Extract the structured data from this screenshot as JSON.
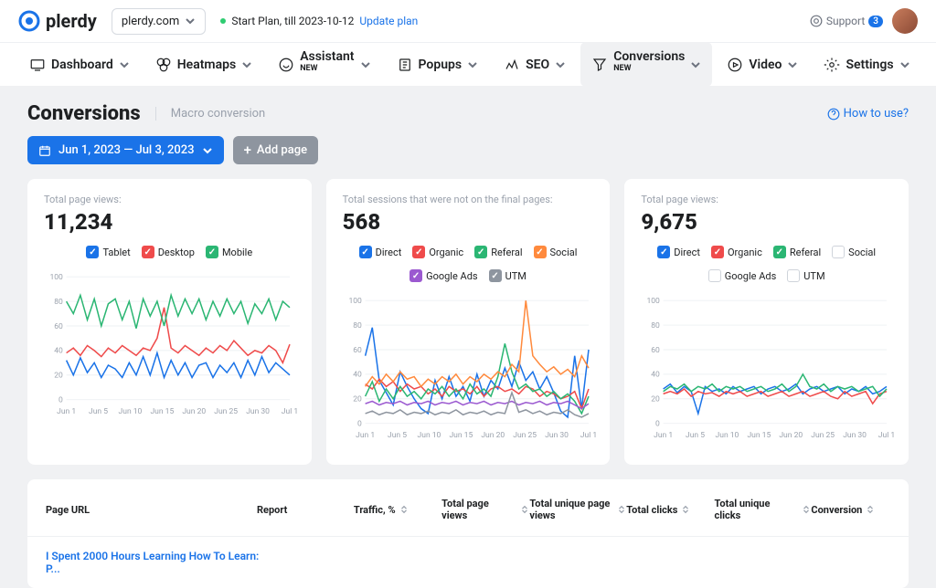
{
  "brand": "plerdy",
  "domain": "plerdy.com",
  "plan_text": "Start Plan, till 2023-10-12",
  "plan_link": "Update plan",
  "support_label": "Support",
  "support_count": "3",
  "nav": [
    {
      "label": "Dashboard",
      "chev": true
    },
    {
      "label": "Heatmaps",
      "chev": true
    },
    {
      "label": "Assistant",
      "new": true,
      "chev": true
    },
    {
      "label": "Popups",
      "chev": true
    },
    {
      "label": "SEO",
      "chev": true
    },
    {
      "label": "Conversions",
      "new": true,
      "chev": true,
      "active": true
    },
    {
      "label": "Video",
      "chev": true
    },
    {
      "label": "Settings",
      "chev": true
    }
  ],
  "page_title": "Conversions",
  "page_sub": "Macro conversion",
  "howto": "How to use?",
  "date_range": "Jun 1, 2023 — Jul 3, 2023",
  "add_page": "Add page",
  "x_labels": [
    "Jun 1",
    "Jun 5",
    "Jun 10",
    "Jun 15",
    "Jun 20",
    "Jun 25",
    "Jun 30",
    "Jul 1"
  ],
  "y_ticks": [
    0,
    20,
    40,
    60,
    80,
    100
  ],
  "charts": [
    {
      "label": "Total page views:",
      "value": "11,234",
      "legend": [
        {
          "name": "Tablet",
          "color": "#1a73e8",
          "on": true
        },
        {
          "name": "Desktop",
          "color": "#ef4b4b",
          "on": true
        },
        {
          "name": "Mobile",
          "color": "#2bb673",
          "on": true
        }
      ],
      "series": [
        {
          "color": "#1a73e8",
          "data": [
            32,
            20,
            34,
            22,
            30,
            18,
            28,
            25,
            18,
            30,
            20,
            35,
            20,
            38,
            18,
            32,
            20,
            30,
            18,
            28,
            30,
            18,
            28,
            22,
            30,
            18,
            32,
            20,
            35,
            22,
            30,
            25,
            20
          ]
        },
        {
          "color": "#ef4b4b",
          "data": [
            38,
            42,
            36,
            44,
            40,
            35,
            42,
            38,
            44,
            40,
            36,
            42,
            40,
            50,
            75,
            42,
            38,
            44,
            40,
            36,
            42,
            38,
            44,
            40,
            48,
            42,
            36,
            40,
            38,
            44,
            40,
            30,
            45
          ]
        },
        {
          "color": "#2bb673",
          "data": [
            80,
            70,
            85,
            65,
            82,
            60,
            78,
            82,
            65,
            80,
            58,
            82,
            68,
            80,
            60,
            85,
            68,
            82,
            70,
            82,
            65,
            80,
            68,
            82,
            70,
            80,
            62,
            78,
            70,
            82,
            65,
            80,
            75
          ]
        }
      ]
    },
    {
      "label": "Total sessions that were not on the final pages:",
      "value": "568",
      "legend": [
        {
          "name": "Direct",
          "color": "#1a73e8",
          "on": true
        },
        {
          "name": "Organic",
          "color": "#ef4b4b",
          "on": true
        },
        {
          "name": "Referal",
          "color": "#2bb673",
          "on": true
        },
        {
          "name": "Social",
          "color": "#ff8a3d",
          "on": true
        },
        {
          "name": "Google Ads",
          "color": "#9b59d0",
          "on": true
        },
        {
          "name": "UTM",
          "color": "#8e959f",
          "on": true
        }
      ],
      "series": [
        {
          "color": "#1a73e8",
          "data": [
            55,
            78,
            35,
            25,
            15,
            42,
            30,
            20,
            12,
            8,
            35,
            20,
            38,
            22,
            30,
            18,
            40,
            22,
            35,
            28,
            45,
            30,
            50,
            35,
            42,
            28,
            38,
            25,
            10,
            5,
            55,
            12,
            60
          ]
        },
        {
          "color": "#ef4b4b",
          "data": [
            32,
            28,
            36,
            30,
            34,
            26,
            32,
            28,
            30,
            24,
            28,
            22,
            30,
            26,
            28,
            24,
            30,
            22,
            28,
            30,
            26,
            28,
            24,
            30,
            28,
            22,
            26,
            24,
            20,
            22,
            26,
            12,
            28
          ]
        },
        {
          "color": "#2bb673",
          "data": [
            22,
            34,
            18,
            28,
            20,
            30,
            22,
            26,
            20,
            28,
            24,
            30,
            22,
            28,
            20,
            32,
            24,
            28,
            22,
            38,
            65,
            42,
            28,
            32,
            26,
            28,
            22,
            26,
            20,
            24,
            18,
            8,
            22
          ]
        },
        {
          "color": "#ff8a3d",
          "data": [
            30,
            38,
            32,
            40,
            34,
            42,
            36,
            38,
            30,
            36,
            32,
            38,
            34,
            40,
            32,
            38,
            34,
            40,
            36,
            42,
            38,
            48,
            42,
            100,
            55,
            48,
            42,
            46,
            40,
            44,
            38,
            55,
            45
          ]
        },
        {
          "color": "#9b59d0",
          "data": [
            16,
            18,
            15,
            17,
            16,
            18,
            15,
            17,
            16,
            18,
            15,
            17,
            16,
            18,
            15,
            17,
            16,
            18,
            15,
            17,
            16,
            18,
            15,
            17,
            16,
            18,
            15,
            17,
            16,
            18,
            15,
            12,
            16
          ]
        },
        {
          "color": "#8e959f",
          "data": [
            8,
            10,
            7,
            9,
            8,
            11,
            7,
            9,
            8,
            10,
            7,
            9,
            8,
            11,
            7,
            9,
            8,
            10,
            7,
            9,
            8,
            25,
            9,
            11,
            8,
            10,
            7,
            9,
            8,
            11,
            7,
            5,
            8
          ]
        }
      ]
    },
    {
      "label": "Total page views:",
      "value": "9,675",
      "legend": [
        {
          "name": "Direct",
          "color": "#1a73e8",
          "on": true
        },
        {
          "name": "Organic",
          "color": "#ef4b4b",
          "on": true
        },
        {
          "name": "Referal",
          "color": "#2bb673",
          "on": true
        },
        {
          "name": "Social",
          "color": "#ff8a3d",
          "on": false
        },
        {
          "name": "Google Ads",
          "color": "#9b59d0",
          "on": false
        },
        {
          "name": "UTM",
          "color": "#8e959f",
          "on": false
        }
      ],
      "series": [
        {
          "color": "#1a73e8",
          "data": [
            28,
            32,
            25,
            30,
            26,
            8,
            30,
            26,
            28,
            24,
            30,
            26,
            28,
            30,
            24,
            28,
            30,
            26,
            28,
            32,
            24,
            28,
            30,
            26,
            28,
            30,
            24,
            28,
            26,
            30,
            24,
            26,
            30
          ]
        },
        {
          "color": "#ef4b4b",
          "data": [
            24,
            26,
            24,
            28,
            22,
            26,
            24,
            25,
            22,
            26,
            24,
            26,
            22,
            24,
            26,
            22,
            24,
            26,
            22,
            24,
            26,
            22,
            24,
            26,
            22,
            20,
            26,
            22,
            24,
            26,
            16,
            24,
            26
          ]
        },
        {
          "color": "#2bb673",
          "data": [
            26,
            30,
            28,
            32,
            26,
            30,
            28,
            32,
            26,
            30,
            28,
            30,
            26,
            28,
            30,
            26,
            28,
            32,
            26,
            30,
            40,
            30,
            28,
            32,
            26,
            30,
            28,
            30,
            26,
            28,
            30,
            22,
            28
          ]
        }
      ]
    }
  ],
  "table": {
    "headers": [
      "Page URL",
      "Report",
      "Traffic, %",
      "Total page views",
      "Total unique page views",
      "Total clicks",
      "Total unique clicks",
      "Conversion"
    ],
    "row_url": "I Spent 2000 Hours Learning How To Learn: P..."
  }
}
